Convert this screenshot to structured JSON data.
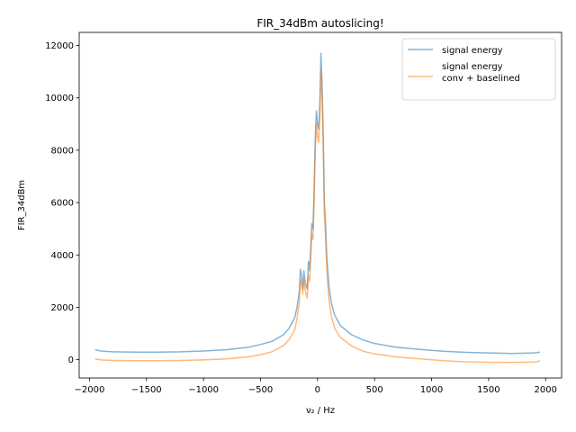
{
  "chart_data": {
    "type": "line",
    "title": "FIR_34dBm autoslicing!",
    "xlabel": "ν₂ / Hz",
    "ylabel": "FIR_34dBm",
    "xlim": [
      -2090,
      2140
    ],
    "ylim": [
      -700,
      12500
    ],
    "xticks": [
      -2000,
      -1500,
      -1000,
      -500,
      0,
      500,
      1000,
      1500,
      2000
    ],
    "yticks": [
      0,
      2000,
      4000,
      6000,
      8000,
      10000,
      12000
    ],
    "legend_position": "upper right",
    "grid": false,
    "series": [
      {
        "name": "signal energy",
        "color": "#1f77b4",
        "alpha": 0.55,
        "points": [
          [
            -1950,
            380
          ],
          [
            -1900,
            330
          ],
          [
            -1800,
            300
          ],
          [
            -1600,
            290
          ],
          [
            -1400,
            290
          ],
          [
            -1200,
            300
          ],
          [
            -1000,
            330
          ],
          [
            -800,
            380
          ],
          [
            -600,
            480
          ],
          [
            -500,
            580
          ],
          [
            -400,
            700
          ],
          [
            -300,
            950
          ],
          [
            -250,
            1200
          ],
          [
            -200,
            1600
          ],
          [
            -180,
            2000
          ],
          [
            -160,
            2600
          ],
          [
            -150,
            3450
          ],
          [
            -140,
            3200
          ],
          [
            -130,
            2700
          ],
          [
            -120,
            3400
          ],
          [
            -110,
            3000
          ],
          [
            -100,
            2800
          ],
          [
            -90,
            2700
          ],
          [
            -80,
            3750
          ],
          [
            -70,
            3400
          ],
          [
            -60,
            4200
          ],
          [
            -50,
            5200
          ],
          [
            -40,
            5000
          ],
          [
            -30,
            6500
          ],
          [
            -20,
            8500
          ],
          [
            -10,
            9500
          ],
          [
            0,
            9000
          ],
          [
            10,
            8800
          ],
          [
            20,
            9800
          ],
          [
            30,
            11700
          ],
          [
            40,
            10500
          ],
          [
            50,
            8500
          ],
          [
            60,
            6000
          ],
          [
            70,
            5200
          ],
          [
            80,
            4000
          ],
          [
            90,
            3400
          ],
          [
            100,
            2800
          ],
          [
            120,
            2200
          ],
          [
            150,
            1700
          ],
          [
            200,
            1300
          ],
          [
            300,
            950
          ],
          [
            400,
            750
          ],
          [
            500,
            620
          ],
          [
            700,
            470
          ],
          [
            900,
            390
          ],
          [
            1100,
            320
          ],
          [
            1300,
            280
          ],
          [
            1500,
            260
          ],
          [
            1700,
            240
          ],
          [
            1900,
            260
          ],
          [
            1950,
            290
          ]
        ]
      },
      {
        "name": "signal energy\nconv + baselined",
        "color": "#ff7f0e",
        "alpha": 0.55,
        "points": [
          [
            -1950,
            30
          ],
          [
            -1900,
            -10
          ],
          [
            -1800,
            -30
          ],
          [
            -1600,
            -40
          ],
          [
            -1400,
            -40
          ],
          [
            -1200,
            -30
          ],
          [
            -1000,
            -10
          ],
          [
            -800,
            30
          ],
          [
            -600,
            110
          ],
          [
            -500,
            190
          ],
          [
            -400,
            300
          ],
          [
            -300,
            530
          ],
          [
            -250,
            760
          ],
          [
            -200,
            1150
          ],
          [
            -180,
            1550
          ],
          [
            -160,
            2200
          ],
          [
            -150,
            3050
          ],
          [
            -140,
            2900
          ],
          [
            -130,
            2500
          ],
          [
            -120,
            3050
          ],
          [
            -110,
            2700
          ],
          [
            -100,
            2500
          ],
          [
            -90,
            2350
          ],
          [
            -80,
            3200
          ],
          [
            -70,
            3000
          ],
          [
            -60,
            3800
          ],
          [
            -50,
            4800
          ],
          [
            -40,
            4600
          ],
          [
            -30,
            6000
          ],
          [
            -20,
            8000
          ],
          [
            -10,
            9000
          ],
          [
            0,
            8500
          ],
          [
            10,
            8300
          ],
          [
            20,
            9300
          ],
          [
            30,
            11050
          ],
          [
            40,
            10000
          ],
          [
            50,
            8000
          ],
          [
            60,
            5500
          ],
          [
            70,
            4700
          ],
          [
            80,
            3500
          ],
          [
            90,
            2900
          ],
          [
            100,
            2300
          ],
          [
            120,
            1700
          ],
          [
            150,
            1200
          ],
          [
            200,
            850
          ],
          [
            300,
            520
          ],
          [
            400,
            320
          ],
          [
            500,
            220
          ],
          [
            700,
            100
          ],
          [
            900,
            30
          ],
          [
            1100,
            -40
          ],
          [
            1300,
            -80
          ],
          [
            1500,
            -100
          ],
          [
            1700,
            -110
          ],
          [
            1900,
            -90
          ],
          [
            1950,
            -50
          ]
        ]
      }
    ]
  }
}
